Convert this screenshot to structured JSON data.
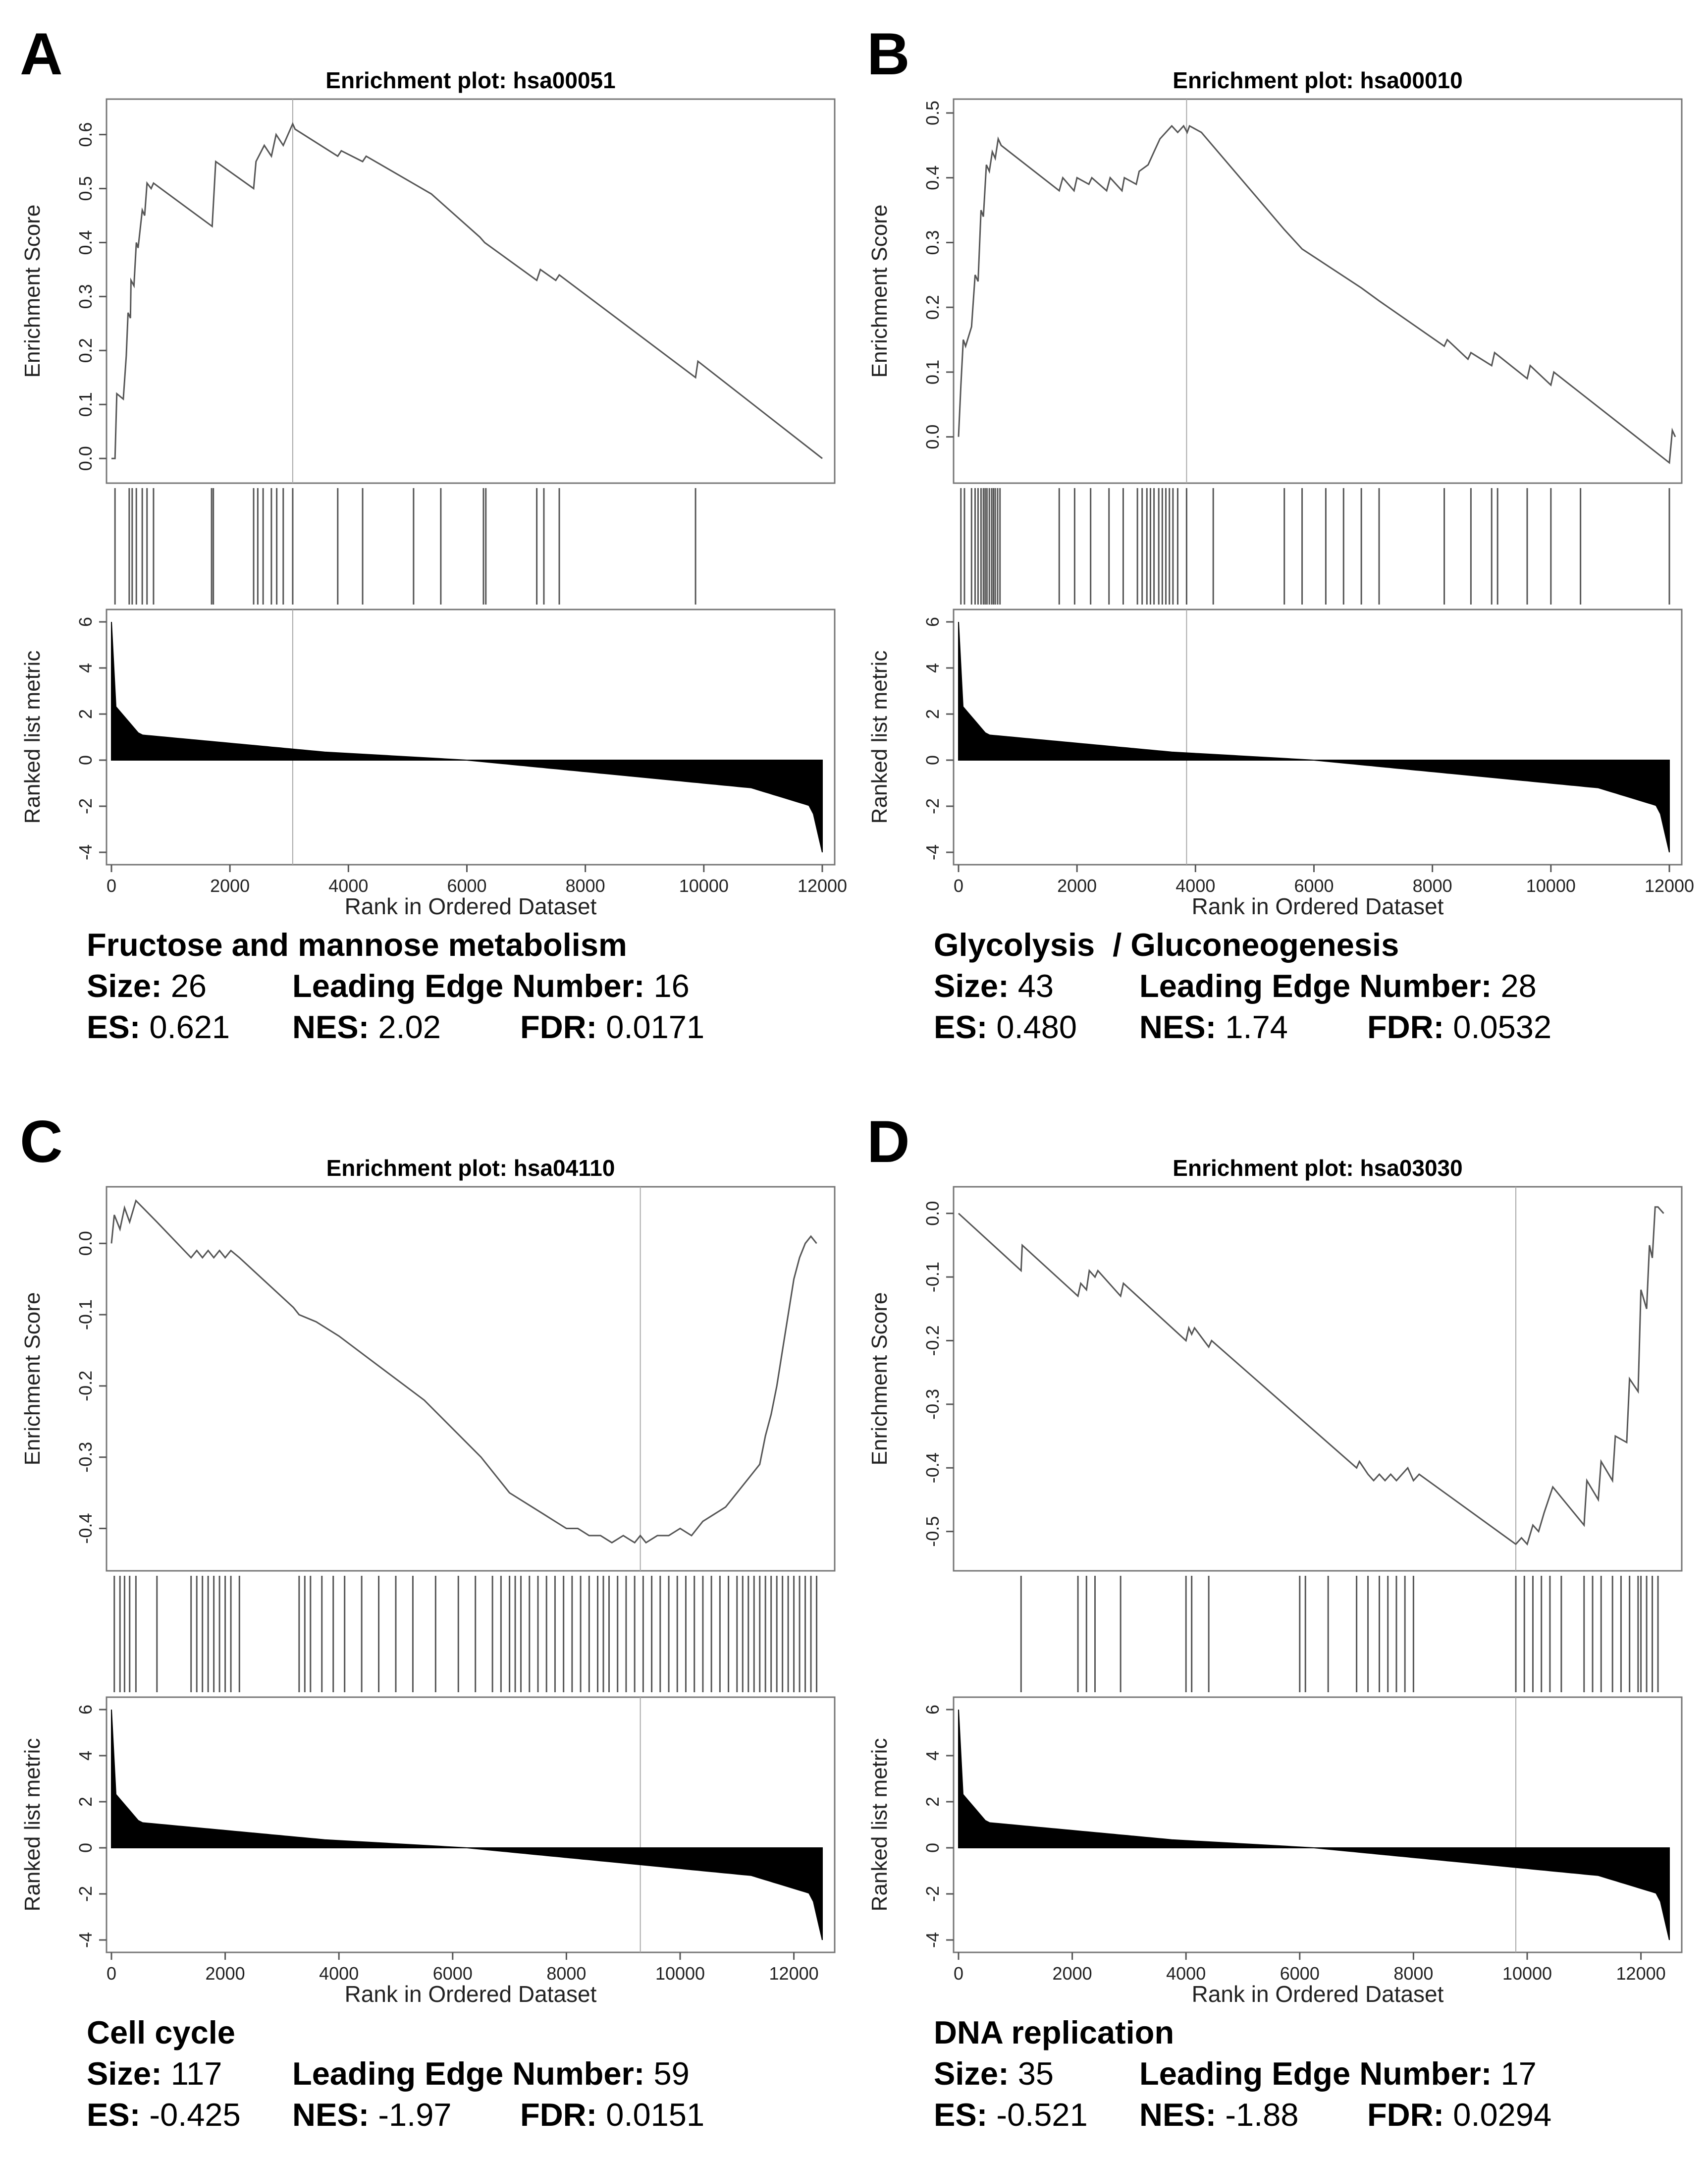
{
  "chart_data": [
    {
      "type": "line",
      "panel": "A",
      "title": "Enrichment plot: hsa00051",
      "xlabel": "Rank in Ordered Dataset",
      "ylabel": "Enrichment Score",
      "ylabel_bottom": "Ranked list metric",
      "xlim": [
        0,
        12000
      ],
      "ylim": [
        -0.02,
        0.64
      ],
      "yticks": [
        "0.0",
        "0.1",
        "0.2",
        "0.3",
        "0.4",
        "0.5",
        "0.6"
      ],
      "ytick_values": [
        0,
        0.1,
        0.2,
        0.3,
        0.4,
        0.5,
        0.6
      ],
      "metric_yticks": [
        "6",
        "4",
        "2",
        "0",
        "-2",
        "-4"
      ],
      "metric_ytick_values": [
        6,
        4,
        2,
        0,
        -2,
        -4
      ],
      "xticks": [
        "0",
        "2000",
        "4000",
        "6000",
        "8000",
        "10000",
        "12000"
      ],
      "xtick_values": [
        0,
        2000,
        4000,
        6000,
        8000,
        10000,
        12000
      ],
      "es_curve": {
        "x": [
          0,
          60,
          90,
          200,
          250,
          280,
          320,
          330,
          380,
          420,
          450,
          520,
          560,
          600,
          670,
          710,
          1700,
          1760,
          2400,
          2440,
          2580,
          2700,
          2780,
          2900,
          3060,
          3100,
          3820,
          3880,
          4240,
          4300,
          5400,
          6220,
          6300,
          7180,
          7240,
          7500,
          7560,
          9860,
          9900,
          12000
        ],
        "y": [
          0,
          0,
          0.12,
          0.11,
          0.19,
          0.27,
          0.26,
          0.33,
          0.32,
          0.4,
          0.39,
          0.46,
          0.45,
          0.51,
          0.5,
          0.51,
          0.43,
          0.55,
          0.5,
          0.55,
          0.58,
          0.56,
          0.6,
          0.58,
          0.62,
          0.61,
          0.56,
          0.57,
          0.55,
          0.56,
          0.49,
          0.41,
          0.4,
          0.33,
          0.35,
          0.33,
          0.34,
          0.15,
          0.18,
          0
        ]
      },
      "peak_rank": 3060,
      "hits": [
        60,
        300,
        350,
        420,
        520,
        600,
        710,
        1690,
        1720,
        2400,
        2470,
        2560,
        2700,
        2790,
        2900,
        3060,
        3820,
        4240,
        5100,
        5560,
        6280,
        6320,
        7180,
        7300,
        7560,
        9860
      ],
      "metric": {
        "n": 12000,
        "max": 6,
        "min": -4
      },
      "pathway": "Fructose and mannose metabolism",
      "size_label": "Size:",
      "size": "26",
      "le_label": "Leading Edge Number:",
      "leading_edge": "16",
      "es_label": "ES:",
      "es": "0.621",
      "nes_label": "NES:",
      "nes": "2.02",
      "fdr_label": "FDR:",
      "fdr": "0.0171"
    },
    {
      "type": "line",
      "panel": "B",
      "title": "Enrichment plot: hsa00010",
      "xlabel": "Rank in Ordered Dataset",
      "ylabel": "Enrichment Score",
      "ylabel_bottom": "Ranked list metric",
      "xlim": [
        0,
        12000
      ],
      "ylim": [
        -0.05,
        0.5
      ],
      "yticks": [
        "0.0",
        "0.1",
        "0.2",
        "0.3",
        "0.4",
        "0.5"
      ],
      "ytick_values": [
        0,
        0.1,
        0.2,
        0.3,
        0.4,
        0.5
      ],
      "metric_yticks": [
        "6",
        "4",
        "2",
        "0",
        "-2",
        "-4"
      ],
      "metric_ytick_values": [
        6,
        4,
        2,
        0,
        -2,
        -4
      ],
      "xticks": [
        "0",
        "2000",
        "4000",
        "6000",
        "8000",
        "10000",
        "12000"
      ],
      "xtick_values": [
        0,
        2000,
        4000,
        6000,
        8000,
        10000,
        12000
      ],
      "es_curve": {
        "x": [
          0,
          40,
          80,
          120,
          220,
          280,
          330,
          380,
          420,
          470,
          520,
          570,
          620,
          670,
          720,
          1700,
          1760,
          1950,
          2000,
          2200,
          2250,
          2500,
          2560,
          2760,
          2800,
          3000,
          3050,
          3200,
          3300,
          3400,
          3500,
          3600,
          3700,
          3800,
          3860,
          3900,
          4100,
          5500,
          5800,
          6300,
          6800,
          7100,
          8200,
          8250,
          8600,
          8650,
          9000,
          9050,
          9600,
          9650,
          10000,
          10050,
          12000,
          12050,
          12100
        ],
        "y": [
          0,
          0.08,
          0.15,
          0.14,
          0.17,
          0.25,
          0.24,
          0.35,
          0.34,
          0.42,
          0.41,
          0.44,
          0.43,
          0.46,
          0.45,
          0.38,
          0.4,
          0.38,
          0.4,
          0.39,
          0.4,
          0.38,
          0.4,
          0.38,
          0.4,
          0.39,
          0.41,
          0.42,
          0.44,
          0.46,
          0.47,
          0.48,
          0.47,
          0.48,
          0.47,
          0.48,
          0.47,
          0.32,
          0.29,
          0.26,
          0.23,
          0.21,
          0.14,
          0.15,
          0.12,
          0.13,
          0.11,
          0.13,
          0.09,
          0.11,
          0.08,
          0.1,
          -0.04,
          0.01,
          0
        ]
      },
      "peak_rank": 3850,
      "hits": [
        40,
        100,
        220,
        280,
        330,
        380,
        420,
        450,
        480,
        520,
        560,
        590,
        620,
        660,
        700,
        1700,
        1960,
        2230,
        2540,
        2780,
        3020,
        3100,
        3180,
        3240,
        3300,
        3380,
        3440,
        3500,
        3560,
        3620,
        3700,
        3850,
        4300,
        5500,
        5800,
        6200,
        6500,
        6800,
        7100,
        8200,
        8650,
        9000,
        9100,
        9600,
        10000,
        10500,
        12000
      ],
      "metric": {
        "n": 12000,
        "max": 6,
        "min": -4
      },
      "pathway": "Glycolysis  / Gluconeogenesis",
      "size_label": "Size:",
      "size": "43",
      "le_label": "Leading Edge Number:",
      "leading_edge": "28",
      "es_label": "ES:",
      "es": "0.480",
      "nes_label": "NES:",
      "nes": "1.74",
      "fdr_label": "FDR:",
      "fdr": "0.0532"
    },
    {
      "type": "line",
      "panel": "C",
      "title": "Enrichment plot: hsa04110",
      "xlabel": "Rank in Ordered Dataset",
      "ylabel": "Enrichment Score",
      "ylabel_bottom": "Ranked list metric",
      "xlim": [
        0,
        12500
      ],
      "ylim": [
        -0.44,
        0.06
      ],
      "yticks": [
        "0.0",
        "-0.1",
        "-0.2",
        "-0.3",
        "-0.4"
      ],
      "ytick_values": [
        0,
        -0.1,
        -0.2,
        -0.3,
        -0.4
      ],
      "metric_yticks": [
        "6",
        "4",
        "2",
        "0",
        "-2",
        "-4"
      ],
      "metric_ytick_values": [
        6,
        4,
        2,
        0,
        -2,
        -4
      ],
      "xticks": [
        "0",
        "2000",
        "4000",
        "6000",
        "8000",
        "10000",
        "12000"
      ],
      "xtick_values": [
        0,
        2000,
        4000,
        6000,
        8000,
        10000,
        12000
      ],
      "es_curve": {
        "x": [
          0,
          50,
          150,
          230,
          320,
          430,
          800,
          1400,
          1500,
          1600,
          1700,
          1800,
          1900,
          2000,
          2100,
          2250,
          3200,
          3300,
          3600,
          4000,
          4500,
          5500,
          6500,
          6800,
          7000,
          7200,
          7400,
          7600,
          7800,
          8000,
          8200,
          8400,
          8600,
          8800,
          9000,
          9200,
          9300,
          9400,
          9600,
          9800,
          10000,
          10200,
          10400,
          10600,
          10800,
          11000,
          11200,
          11400,
          11500,
          11600,
          11700,
          11800,
          11900,
          12000,
          12100,
          12200,
          12300,
          12400
        ],
        "y": [
          0,
          0.04,
          0.02,
          0.05,
          0.03,
          0.06,
          0.03,
          -0.02,
          -0.01,
          -0.02,
          -0.01,
          -0.02,
          -0.01,
          -0.02,
          -0.01,
          -0.02,
          -0.09,
          -0.1,
          -0.11,
          -0.13,
          -0.16,
          -0.22,
          -0.3,
          -0.33,
          -0.35,
          -0.36,
          -0.37,
          -0.38,
          -0.39,
          -0.4,
          -0.4,
          -0.41,
          -0.41,
          -0.42,
          -0.41,
          -0.42,
          -0.41,
          -0.42,
          -0.41,
          -0.41,
          -0.4,
          -0.41,
          -0.39,
          -0.38,
          -0.37,
          -0.35,
          -0.33,
          -0.31,
          -0.27,
          -0.24,
          -0.2,
          -0.15,
          -0.1,
          -0.05,
          -0.02,
          0,
          0.01,
          0
        ]
      },
      "peak_rank": 9300,
      "hits": [
        50,
        150,
        230,
        320,
        430,
        800,
        1400,
        1500,
        1600,
        1700,
        1800,
        1900,
        2000,
        2100,
        2250,
        3300,
        3400,
        3500,
        3700,
        3900,
        4100,
        4400,
        4700,
        5000,
        5300,
        5700,
        6100,
        6400,
        6700,
        6850,
        7000,
        7100,
        7200,
        7350,
        7500,
        7650,
        7800,
        7950,
        8100,
        8250,
        8400,
        8550,
        8650,
        8750,
        8900,
        9050,
        9200,
        9350,
        9500,
        9650,
        9800,
        9950,
        10100,
        10250,
        10400,
        10550,
        10700,
        10850,
        11000,
        11100,
        11200,
        11300,
        11400,
        11500,
        11600,
        11700,
        11800,
        11900,
        12000,
        12100,
        12200,
        12300,
        12400
      ],
      "metric": {
        "n": 12500,
        "max": 6,
        "min": -4
      },
      "pathway": "Cell cycle",
      "size_label": "Size:",
      "size": "117",
      "le_label": "Leading Edge Number:",
      "leading_edge": "59",
      "es_label": "ES:",
      "es": "-0.425",
      "nes_label": "NES:",
      "nes": "-1.97",
      "fdr_label": "FDR:",
      "fdr": "0.0151"
    },
    {
      "type": "line",
      "panel": "D",
      "title": "Enrichment plot: hsa03030",
      "xlabel": "Rank in Ordered Dataset",
      "ylabel": "Enrichment Score",
      "ylabel_bottom": "Ranked list metric",
      "xlim": [
        0,
        12500
      ],
      "ylim": [
        -0.54,
        0.02
      ],
      "yticks": [
        "0.0",
        "-0.1",
        "-0.2",
        "-0.3",
        "-0.4",
        "-0.5"
      ],
      "ytick_values": [
        0,
        -0.1,
        -0.2,
        -0.3,
        -0.4,
        -0.5
      ],
      "metric_yticks": [
        "6",
        "4",
        "2",
        "0",
        "-2",
        "-4"
      ],
      "metric_ytick_values": [
        6,
        4,
        2,
        0,
        -2,
        -4
      ],
      "xticks": [
        "0",
        "2000",
        "4000",
        "6000",
        "8000",
        "10000",
        "12000"
      ],
      "xtick_values": [
        0,
        2000,
        4000,
        6000,
        8000,
        10000,
        12000
      ],
      "es_curve": {
        "x": [
          0,
          1100,
          1120,
          2100,
          2150,
          2250,
          2300,
          2400,
          2450,
          2850,
          2900,
          4000,
          4050,
          4100,
          4150,
          4400,
          4450,
          7000,
          7050,
          7200,
          7300,
          7400,
          7500,
          7600,
          7700,
          7800,
          7900,
          8000,
          8100,
          9800,
          9900,
          10000,
          10100,
          10200,
          10300,
          10450,
          11000,
          11050,
          11250,
          11300,
          11500,
          11550,
          11750,
          11800,
          11950,
          12000,
          12100,
          12150,
          12200,
          12250,
          12300,
          12400
        ],
        "y": [
          0,
          -0.09,
          -0.05,
          -0.13,
          -0.11,
          -0.12,
          -0.09,
          -0.1,
          -0.09,
          -0.13,
          -0.11,
          -0.2,
          -0.18,
          -0.19,
          -0.18,
          -0.21,
          -0.2,
          -0.4,
          -0.39,
          -0.41,
          -0.42,
          -0.41,
          -0.42,
          -0.41,
          -0.42,
          -0.41,
          -0.4,
          -0.42,
          -0.41,
          -0.52,
          -0.51,
          -0.52,
          -0.49,
          -0.5,
          -0.47,
          -0.43,
          -0.49,
          -0.42,
          -0.45,
          -0.39,
          -0.42,
          -0.35,
          -0.36,
          -0.26,
          -0.28,
          -0.12,
          -0.15,
          -0.05,
          -0.07,
          0.01,
          0.01,
          0
        ]
      },
      "peak_rank": 9800,
      "hits": [
        1100,
        2100,
        2250,
        2400,
        2850,
        4000,
        4100,
        4400,
        6000,
        6100,
        6500,
        7000,
        7200,
        7400,
        7550,
        7700,
        7850,
        8000,
        9800,
        9950,
        10100,
        10250,
        10400,
        10600,
        11000,
        11150,
        11300,
        11500,
        11650,
        11800,
        11950,
        12000,
        12100,
        12200,
        12300
      ],
      "metric": {
        "n": 12500,
        "max": 6,
        "min": -4
      },
      "pathway": "DNA replication",
      "size_label": "Size:",
      "size": "35",
      "le_label": "Leading Edge Number:",
      "leading_edge": "17",
      "es_label": "ES:",
      "es": "-0.521",
      "nes_label": "NES:",
      "nes": "-1.88",
      "fdr_label": "FDR:",
      "fdr": "0.0294"
    }
  ]
}
